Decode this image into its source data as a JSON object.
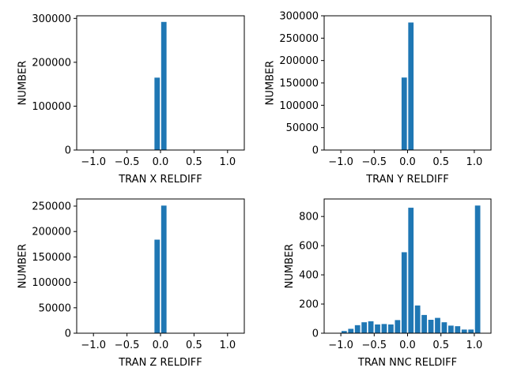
{
  "chart_data": [
    {
      "type": "bar",
      "xlabel": "TRAN X RELDIFF",
      "ylabel": "NUMBER",
      "xlim": [
        -1.25,
        1.25
      ],
      "ylim": [
        0,
        306000
      ],
      "xticks": [
        -1.0,
        -0.5,
        0.0,
        0.5,
        1.0
      ],
      "xtick_labels": [
        "−1.0",
        "−0.5",
        "0.0",
        "0.5",
        "1.0"
      ],
      "yticks": [
        0,
        100000,
        200000,
        300000
      ],
      "ytick_labels": [
        "0",
        "100000",
        "200000",
        "300000"
      ],
      "bar_width": 0.08,
      "color": "#1f77b4",
      "bars": [
        {
          "x": -0.05,
          "value": 165000
        },
        {
          "x": 0.05,
          "value": 292000
        }
      ]
    },
    {
      "type": "bar",
      "xlabel": "TRAN Y RELDIFF",
      "ylabel": "NUMBER",
      "xlim": [
        -1.25,
        1.25
      ],
      "ylim": [
        0,
        300000
      ],
      "xticks": [
        -1.0,
        -0.5,
        0.0,
        0.5,
        1.0
      ],
      "xtick_labels": [
        "−1.0",
        "−0.5",
        "0.0",
        "0.5",
        "1.0"
      ],
      "yticks": [
        0,
        50000,
        100000,
        150000,
        200000,
        250000,
        300000
      ],
      "ytick_labels": [
        "0",
        "50000",
        "100000",
        "150000",
        "200000",
        "250000",
        "300000"
      ],
      "bar_width": 0.08,
      "color": "#1f77b4",
      "bars": [
        {
          "x": -0.05,
          "value": 162000
        },
        {
          "x": 0.05,
          "value": 285000
        }
      ]
    },
    {
      "type": "bar",
      "xlabel": "TRAN Z RELDIFF",
      "ylabel": "NUMBER",
      "xlim": [
        -1.25,
        1.25
      ],
      "ylim": [
        0,
        264000
      ],
      "xticks": [
        -1.0,
        -0.5,
        0.0,
        0.5,
        1.0
      ],
      "xtick_labels": [
        "−1.0",
        "−0.5",
        "0.0",
        "0.5",
        "1.0"
      ],
      "yticks": [
        0,
        50000,
        100000,
        150000,
        200000,
        250000
      ],
      "ytick_labels": [
        "0",
        "50000",
        "100000",
        "150000",
        "200000",
        "250000"
      ],
      "bar_width": 0.08,
      "color": "#1f77b4",
      "bars": [
        {
          "x": -0.05,
          "value": 184000
        },
        {
          "x": 0.05,
          "value": 251000
        }
      ]
    },
    {
      "type": "bar",
      "xlabel": "TRAN NNC RELDIFF",
      "ylabel": "NUMBER",
      "xlim": [
        -1.25,
        1.25
      ],
      "ylim": [
        0,
        920
      ],
      "xticks": [
        -1.0,
        -0.5,
        0.0,
        0.5,
        1.0
      ],
      "xtick_labels": [
        "−1.0",
        "−0.5",
        "0.0",
        "0.5",
        "1.0"
      ],
      "yticks": [
        0,
        200,
        400,
        600,
        800
      ],
      "ytick_labels": [
        "0",
        "200",
        "400",
        "600",
        "800"
      ],
      "bar_width": 0.08,
      "color": "#1f77b4",
      "bars": [
        {
          "x": -0.95,
          "value": 15
        },
        {
          "x": -0.85,
          "value": 30
        },
        {
          "x": -0.75,
          "value": 55
        },
        {
          "x": -0.65,
          "value": 75
        },
        {
          "x": -0.55,
          "value": 82
        },
        {
          "x": -0.45,
          "value": 60
        },
        {
          "x": -0.35,
          "value": 63
        },
        {
          "x": -0.25,
          "value": 60
        },
        {
          "x": -0.15,
          "value": 90
        },
        {
          "x": -0.05,
          "value": 555
        },
        {
          "x": 0.05,
          "value": 860
        },
        {
          "x": 0.15,
          "value": 190
        },
        {
          "x": 0.25,
          "value": 125
        },
        {
          "x": 0.35,
          "value": 92
        },
        {
          "x": 0.45,
          "value": 105
        },
        {
          "x": 0.55,
          "value": 75
        },
        {
          "x": 0.65,
          "value": 52
        },
        {
          "x": 0.75,
          "value": 48
        },
        {
          "x": 0.85,
          "value": 25
        },
        {
          "x": 0.95,
          "value": 25
        },
        {
          "x": 1.05,
          "value": 875
        }
      ]
    }
  ]
}
